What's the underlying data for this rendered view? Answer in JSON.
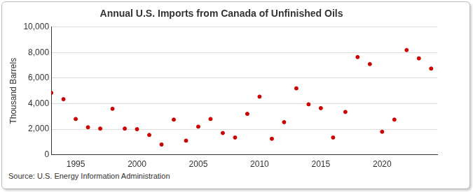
{
  "chart_data": {
    "type": "scatter",
    "title": "Annual U.S. Imports from Canada of Unfinished Oils",
    "y_label": "Thousand Barrels",
    "source": "Source: U.S. Energy Information Administration",
    "x": [
      1993,
      1994,
      1995,
      1996,
      1997,
      1998,
      1999,
      2000,
      2001,
      2002,
      2003,
      2004,
      2005,
      2006,
      2007,
      2008,
      2009,
      2010,
      2011,
      2012,
      2013,
      2014,
      2015,
      2016,
      2017,
      2018,
      2019,
      2020,
      2021,
      2022,
      2023,
      2024
    ],
    "values": [
      4850,
      4350,
      2800,
      2150,
      2050,
      3600,
      2050,
      2000,
      1550,
      800,
      2750,
      1100,
      2200,
      2800,
      1700,
      1350,
      3200,
      4550,
      1250,
      2550,
      5200,
      3950,
      3650,
      1350,
      3350,
      7650,
      7100,
      1800,
      2750,
      8200,
      7550,
      6750
    ],
    "color": "#cc0000",
    "marker": "circle",
    "xlim": [
      1993,
      2024.5
    ],
    "xticks": [
      1995,
      2000,
      2005,
      2010,
      2015,
      2020
    ],
    "ylim": [
      0,
      10000
    ],
    "yticks": [
      {
        "value": 0,
        "label": "0"
      },
      {
        "value": 2000,
        "label": "2,000"
      },
      {
        "value": 4000,
        "label": "4,000"
      },
      {
        "value": 6000,
        "label": "6,000"
      },
      {
        "value": 8000,
        "label": "8,000"
      },
      {
        "value": 10000,
        "label": "10,000"
      }
    ],
    "grid": true
  }
}
